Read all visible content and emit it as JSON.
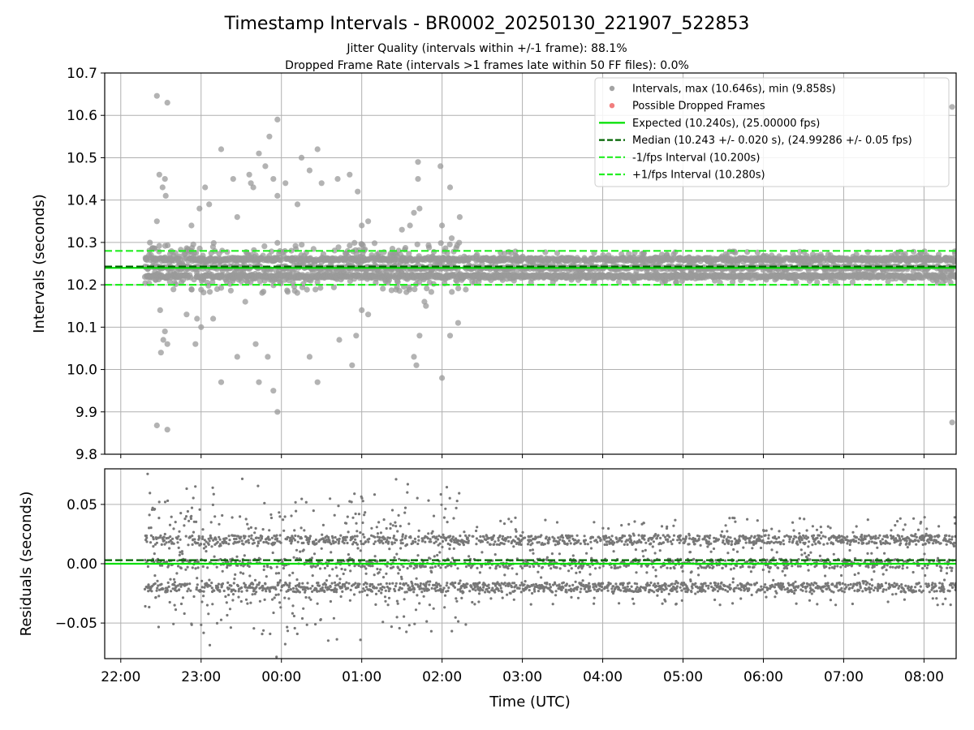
{
  "figure": {
    "title": "Timestamp Intervals - BR0002_20250130_221907_522853",
    "subtitle1": "Jitter Quality (intervals within +/-1 frame): 88.1%",
    "subtitle2": "Dropped Frame Rate (intervals >1 frames late within 50 FF files): 0.0%",
    "xlabel": "Time (UTC)"
  },
  "chart_data": [
    {
      "type": "scatter",
      "panel": "intervals",
      "ylabel": "Intervals (seconds)",
      "ylim": [
        9.8,
        10.7
      ],
      "yticks": [
        "9.8",
        "9.9",
        "10.0",
        "10.1",
        "10.2",
        "10.3",
        "10.4",
        "10.5",
        "10.6",
        "10.7"
      ],
      "xlim_hours": [
        21.8,
        32.4
      ],
      "xticks": [
        "22:00",
        "23:00",
        "00:00",
        "01:00",
        "02:00",
        "03:00",
        "04:00",
        "05:00",
        "06:00",
        "07:00",
        "08:00"
      ],
      "grid": true,
      "legend_placement": "top-right",
      "data_start_hour": 22.3,
      "data_end_hour": 32.4,
      "point_count": 3550,
      "series": [
        {
          "name": "Intervals, max (10.646s), min (9.858s)",
          "color": "#999999",
          "max": 10.646,
          "min": 9.858,
          "outliers": [
            [
              22.45,
              10.646
            ],
            [
              22.58,
              10.63
            ],
            [
              22.45,
              9.868
            ],
            [
              22.58,
              9.858
            ],
            [
              22.48,
              10.46
            ],
            [
              22.55,
              10.45
            ],
            [
              22.52,
              10.43
            ],
            [
              22.56,
              10.41
            ],
            [
              22.45,
              10.35
            ],
            [
              22.49,
              10.14
            ],
            [
              22.5,
              10.04
            ],
            [
              22.53,
              10.07
            ],
            [
              22.55,
              10.09
            ],
            [
              22.58,
              10.06
            ],
            [
              22.82,
              10.13
            ],
            [
              22.88,
              10.34
            ],
            [
              22.93,
              10.06
            ],
            [
              22.95,
              10.12
            ],
            [
              22.98,
              10.38
            ],
            [
              23.0,
              10.1
            ],
            [
              23.05,
              10.43
            ],
            [
              23.1,
              10.39
            ],
            [
              23.15,
              10.12
            ],
            [
              23.25,
              10.52
            ],
            [
              23.25,
              9.97
            ],
            [
              23.4,
              10.45
            ],
            [
              23.45,
              10.36
            ],
            [
              23.45,
              10.03
            ],
            [
              23.55,
              10.16
            ],
            [
              23.6,
              10.46
            ],
            [
              23.62,
              10.44
            ],
            [
              23.65,
              10.43
            ],
            [
              23.68,
              10.06
            ],
            [
              23.72,
              10.51
            ],
            [
              23.72,
              9.97
            ],
            [
              23.8,
              10.48
            ],
            [
              23.85,
              10.55
            ],
            [
              23.9,
              10.45
            ],
            [
              23.95,
              10.59
            ],
            [
              23.95,
              10.41
            ],
            [
              23.95,
              9.9
            ],
            [
              23.9,
              9.95
            ],
            [
              23.83,
              10.03
            ],
            [
              24.05,
              10.44
            ],
            [
              24.2,
              10.39
            ],
            [
              24.25,
              10.5
            ],
            [
              24.35,
              10.47
            ],
            [
              24.35,
              10.03
            ],
            [
              24.45,
              9.97
            ],
            [
              24.45,
              10.52
            ],
            [
              24.5,
              10.44
            ],
            [
              24.7,
              10.45
            ],
            [
              24.72,
              10.07
            ],
            [
              24.85,
              10.46
            ],
            [
              24.88,
              10.01
            ],
            [
              24.95,
              10.42
            ],
            [
              24.93,
              10.08
            ],
            [
              25.0,
              10.34
            ],
            [
              25.0,
              10.14
            ],
            [
              25.08,
              10.35
            ],
            [
              25.08,
              10.13
            ],
            [
              25.5,
              10.33
            ],
            [
              25.6,
              10.34
            ],
            [
              25.65,
              10.37
            ],
            [
              25.7,
              10.49
            ],
            [
              25.7,
              10.45
            ],
            [
              25.72,
              10.38
            ],
            [
              25.65,
              10.03
            ],
            [
              25.68,
              10.01
            ],
            [
              25.72,
              10.08
            ],
            [
              25.78,
              10.16
            ],
            [
              25.8,
              10.15
            ],
            [
              25.98,
              10.48
            ],
            [
              26.0,
              10.34
            ],
            [
              26.0,
              9.98
            ],
            [
              26.1,
              10.43
            ],
            [
              26.12,
              10.31
            ],
            [
              26.22,
              10.36
            ],
            [
              26.2,
              10.11
            ],
            [
              26.1,
              10.08
            ],
            [
              32.35,
              10.62
            ],
            [
              32.35,
              9.875
            ]
          ]
        },
        {
          "name": "Possible Dropped Frames",
          "color": "#f07070",
          "count": 0
        },
        {
          "name": "Expected (10.240s), (25.00000 fps)",
          "color": "#00e000",
          "style": "solid",
          "y": 10.24
        },
        {
          "name": "Median (10.243 +/- 0.020 s), (24.99286 +/- 0.05 fps)",
          "color": "#006400",
          "style": "dashed",
          "y": 10.243
        },
        {
          "name": "-1/fps Interval (10.200s)",
          "color": "#22ee22",
          "style": "dashed",
          "y": 10.2
        },
        {
          "name": "+1/fps Interval (10.280s)",
          "color": "#22ee22",
          "style": "dashed",
          "y": 10.28
        }
      ]
    },
    {
      "type": "scatter",
      "panel": "residuals",
      "ylabel": "Residuals (seconds)",
      "ylim": [
        -0.08,
        0.08
      ],
      "yticks": [
        {
          "value": -0.05,
          "label": "−0.05"
        },
        {
          "value": 0.0,
          "label": "0.00"
        },
        {
          "value": 0.05,
          "label": "0.05"
        }
      ],
      "grid": true,
      "point_count": 3550,
      "lines": [
        {
          "y": 0.0,
          "color": "#00e000",
          "style": "solid"
        },
        {
          "y": 0.003,
          "color": "#006400",
          "style": "dashed"
        }
      ],
      "series": [
        {
          "name": "Residuals",
          "color": "#777777"
        }
      ]
    }
  ]
}
